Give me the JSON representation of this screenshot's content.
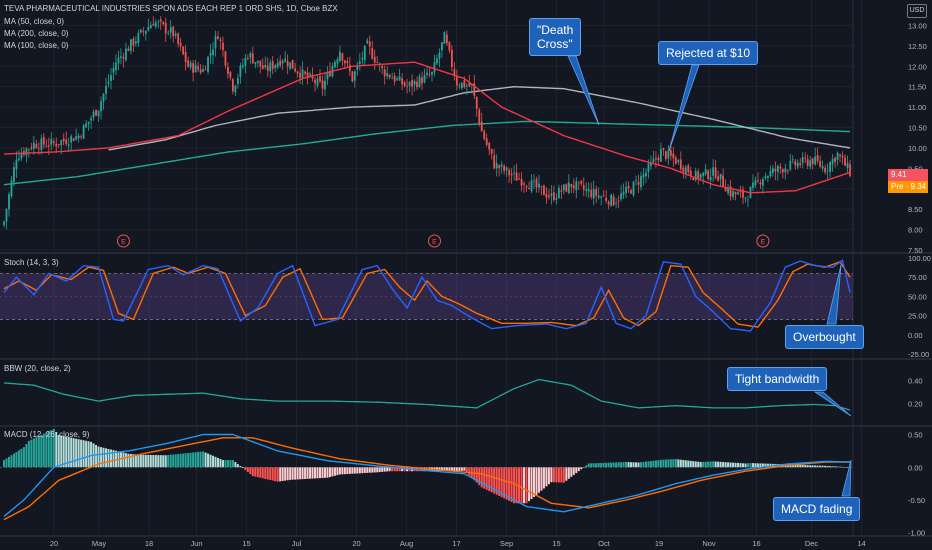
{
  "header": {
    "symbol_line": "TEVA PHARMACEUTICAL INDUSTRIES SPON ADS EACH REP 1 ORD SHS, 1D, Cboe BZX",
    "ma1": "MA (50, close, 0)",
    "ma2": "MA (200, close, 0)",
    "ma3": "MA (100, close, 0)",
    "currency": "USD"
  },
  "price_tags": {
    "last": "9.41",
    "pre": "Pre · 9.34",
    "last_color": "#f7525f",
    "pre_color": "#ff9800"
  },
  "annotations": {
    "death_cross": "\"Death\nCross\"",
    "rejected": "Rejected at $10",
    "overbought": "Overbought",
    "tight_bandwidth": "Tight bandwidth",
    "macd_fading": "MACD fading"
  },
  "indicator_titles": {
    "stoch": "Stoch (14, 3, 3)",
    "bbw": "BBW (20, close, 2)",
    "macd": "MACD (12, 26, close, 9)"
  },
  "earnings_marker": "E",
  "colors": {
    "bg": "#131722",
    "up": "#26a69a",
    "down": "#ef5350",
    "ma50": "#f23645",
    "ma100": "#b2b5be",
    "ma200": "#22ab94",
    "stoch_k": "#2962ff",
    "stoch_d": "#ff6d00",
    "stoch_band": "#7e57c2",
    "bbw": "#26a69a",
    "macd": "#2196f3",
    "signal": "#ff6d00"
  },
  "chart_data": [
    {
      "type": "candlestick",
      "title": "TEVA PHARMACEUTICAL INDUSTRIES SPON ADS EACH REP 1 ORD SHS, 1D, Cboe BZX",
      "ylim": [
        7.5,
        13.5
      ],
      "y_ticks": [
        "13.00",
        "12.50",
        "12.00",
        "11.50",
        "11.00",
        "10.50",
        "10.00",
        "9.50",
        "9.00",
        "8.50",
        "8.00",
        "7.50"
      ],
      "x_ticks": [
        "20",
        "May",
        "18",
        "Jun",
        "15",
        "Jul",
        "20",
        "Aug",
        "17",
        "Sep",
        "15",
        "Oct",
        "19",
        "Nov",
        "16",
        "Dec",
        "14"
      ],
      "close_anchors": [
        [
          0,
          8.2
        ],
        [
          5,
          9.8
        ],
        [
          12,
          10.1
        ],
        [
          20,
          10.1
        ],
        [
          30,
          10.3
        ],
        [
          38,
          11.0
        ],
        [
          45,
          12.1
        ],
        [
          52,
          12.6
        ],
        [
          60,
          13.1
        ],
        [
          68,
          12.8
        ],
        [
          74,
          12.0
        ],
        [
          80,
          11.9
        ],
        [
          86,
          12.8
        ],
        [
          92,
          11.5
        ],
        [
          98,
          12.3
        ],
        [
          105,
          11.9
        ],
        [
          112,
          12.2
        ],
        [
          120,
          11.8
        ],
        [
          128,
          11.5
        ],
        [
          135,
          12.4
        ],
        [
          140,
          11.7
        ],
        [
          146,
          12.5
        ],
        [
          152,
          11.9
        ],
        [
          162,
          11.5
        ],
        [
          172,
          11.8
        ],
        [
          177,
          12.7
        ],
        [
          182,
          11.6
        ],
        [
          188,
          11.5
        ],
        [
          192,
          10.4
        ],
        [
          197,
          9.6
        ],
        [
          205,
          9.3
        ],
        [
          212,
          9.1
        ],
        [
          220,
          8.8
        ],
        [
          228,
          9.1
        ],
        [
          236,
          8.9
        ],
        [
          245,
          8.7
        ],
        [
          252,
          9.0
        ],
        [
          258,
          9.4
        ],
        [
          264,
          9.9
        ],
        [
          270,
          9.7
        ],
        [
          278,
          9.3
        ],
        [
          286,
          9.4
        ],
        [
          292,
          8.9
        ],
        [
          298,
          8.8
        ],
        [
          305,
          9.3
        ],
        [
          312,
          9.5
        ],
        [
          318,
          9.6
        ],
        [
          325,
          9.7
        ],
        [
          330,
          9.5
        ],
        [
          335,
          9.85
        ],
        [
          340,
          9.41
        ]
      ],
      "ma50_anchors": [
        [
          0,
          9.85
        ],
        [
          20,
          9.9
        ],
        [
          42,
          10.0
        ],
        [
          70,
          10.3
        ],
        [
          90,
          10.9
        ],
        [
          120,
          11.7
        ],
        [
          140,
          12.0
        ],
        [
          165,
          12.1
        ],
        [
          185,
          11.7
        ],
        [
          200,
          11.0
        ],
        [
          225,
          10.3
        ],
        [
          250,
          9.8
        ],
        [
          268,
          9.5
        ],
        [
          285,
          9.1
        ],
        [
          300,
          8.9
        ],
        [
          318,
          8.95
        ],
        [
          340,
          9.4
        ]
      ],
      "ma100_anchors": [
        [
          42,
          9.95
        ],
        [
          65,
          10.2
        ],
        [
          85,
          10.55
        ],
        [
          110,
          10.85
        ],
        [
          140,
          11.0
        ],
        [
          165,
          11.05
        ],
        [
          185,
          11.35
        ],
        [
          205,
          11.5
        ],
        [
          225,
          11.45
        ],
        [
          255,
          11.1
        ],
        [
          285,
          10.7
        ],
        [
          315,
          10.25
        ],
        [
          340,
          10.0
        ]
      ],
      "ma200_anchors": [
        [
          0,
          9.1
        ],
        [
          30,
          9.3
        ],
        [
          60,
          9.6
        ],
        [
          90,
          9.9
        ],
        [
          120,
          10.1
        ],
        [
          150,
          10.35
        ],
        [
          180,
          10.55
        ],
        [
          210,
          10.65
        ],
        [
          240,
          10.6
        ],
        [
          270,
          10.55
        ],
        [
          300,
          10.5
        ],
        [
          340,
          10.4
        ]
      ],
      "earnings_days": [
        48,
        173,
        305
      ],
      "last": 9.41,
      "pre": 9.34
    },
    {
      "type": "line",
      "title": "Stoch (14, 3, 3)",
      "ylim": [
        -25,
        100
      ],
      "y_ticks": [
        "100.00",
        "75.00",
        "50.00",
        "25.00",
        "0.00",
        "-25.00"
      ],
      "band": [
        20,
        80
      ],
      "k_anchors": [
        [
          0,
          55
        ],
        [
          5,
          75
        ],
        [
          12,
          52
        ],
        [
          18,
          80
        ],
        [
          25,
          70
        ],
        [
          32,
          90
        ],
        [
          38,
          88
        ],
        [
          44,
          20
        ],
        [
          48,
          18
        ],
        [
          58,
          85
        ],
        [
          66,
          90
        ],
        [
          72,
          78
        ],
        [
          80,
          90
        ],
        [
          86,
          86
        ],
        [
          95,
          18
        ],
        [
          102,
          35
        ],
        [
          110,
          80
        ],
        [
          116,
          90
        ],
        [
          125,
          12
        ],
        [
          134,
          20
        ],
        [
          144,
          85
        ],
        [
          150,
          90
        ],
        [
          156,
          60
        ],
        [
          162,
          35
        ],
        [
          168,
          75
        ],
        [
          174,
          45
        ],
        [
          180,
          38
        ],
        [
          188,
          22
        ],
        [
          196,
          8
        ],
        [
          206,
          12
        ],
        [
          218,
          14
        ],
        [
          226,
          8
        ],
        [
          234,
          15
        ],
        [
          240,
          62
        ],
        [
          246,
          15
        ],
        [
          252,
          8
        ],
        [
          258,
          25
        ],
        [
          265,
          95
        ],
        [
          272,
          92
        ],
        [
          278,
          50
        ],
        [
          285,
          30
        ],
        [
          292,
          8
        ],
        [
          300,
          5
        ],
        [
          308,
          42
        ],
        [
          314,
          88
        ],
        [
          320,
          96
        ],
        [
          326,
          90
        ],
        [
          333,
          88
        ],
        [
          337,
          97
        ],
        [
          340,
          55
        ]
      ],
      "d_anchors": [
        [
          0,
          60
        ],
        [
          6,
          70
        ],
        [
          13,
          58
        ],
        [
          19,
          78
        ],
        [
          27,
          72
        ],
        [
          34,
          88
        ],
        [
          40,
          84
        ],
        [
          46,
          28
        ],
        [
          52,
          20
        ],
        [
          60,
          80
        ],
        [
          68,
          88
        ],
        [
          74,
          80
        ],
        [
          82,
          88
        ],
        [
          89,
          80
        ],
        [
          97,
          25
        ],
        [
          105,
          38
        ],
        [
          112,
          75
        ],
        [
          119,
          86
        ],
        [
          128,
          20
        ],
        [
          136,
          22
        ],
        [
          146,
          80
        ],
        [
          153,
          85
        ],
        [
          159,
          62
        ],
        [
          165,
          45
        ],
        [
          170,
          70
        ],
        [
          176,
          50
        ],
        [
          183,
          40
        ],
        [
          190,
          28
        ],
        [
          200,
          15
        ],
        [
          210,
          15
        ],
        [
          220,
          16
        ],
        [
          230,
          12
        ],
        [
          237,
          22
        ],
        [
          243,
          58
        ],
        [
          249,
          22
        ],
        [
          255,
          12
        ],
        [
          262,
          30
        ],
        [
          268,
          90
        ],
        [
          275,
          88
        ],
        [
          281,
          55
        ],
        [
          288,
          35
        ],
        [
          295,
          14
        ],
        [
          303,
          10
        ],
        [
          311,
          45
        ],
        [
          317,
          82
        ],
        [
          323,
          92
        ],
        [
          330,
          88
        ],
        [
          336,
          95
        ],
        [
          340,
          75
        ]
      ],
      "annotation": "Overbought"
    },
    {
      "type": "line",
      "title": "BBW (20, close, 2)",
      "y_ticks": [
        "0.40",
        "0.20"
      ],
      "values_anchors": [
        [
          0,
          0.38
        ],
        [
          12,
          0.36
        ],
        [
          24,
          0.28
        ],
        [
          38,
          0.22
        ],
        [
          52,
          0.27
        ],
        [
          66,
          0.28
        ],
        [
          80,
          0.29
        ],
        [
          95,
          0.24
        ],
        [
          110,
          0.22
        ],
        [
          130,
          0.22
        ],
        [
          150,
          0.21
        ],
        [
          170,
          0.19
        ],
        [
          190,
          0.16
        ],
        [
          205,
          0.33
        ],
        [
          215,
          0.41
        ],
        [
          228,
          0.36
        ],
        [
          240,
          0.22
        ],
        [
          255,
          0.16
        ],
        [
          270,
          0.18
        ],
        [
          285,
          0.16
        ],
        [
          298,
          0.16
        ],
        [
          312,
          0.18
        ],
        [
          326,
          0.19
        ],
        [
          334,
          0.18
        ],
        [
          340,
          0.14
        ]
      ],
      "annotation": "Tight bandwidth"
    },
    {
      "type": "line",
      "title": "MACD (12, 26, close, 9)",
      "ylim": [
        -1.05,
        0.6
      ],
      "y_ticks": [
        "0.50",
        "0.00",
        "-0.50",
        "-1.00"
      ],
      "macd_anchors": [
        [
          0,
          -0.75
        ],
        [
          8,
          -0.5
        ],
        [
          20,
          0.0
        ],
        [
          35,
          0.18
        ],
        [
          50,
          0.25
        ],
        [
          65,
          0.36
        ],
        [
          80,
          0.5
        ],
        [
          92,
          0.5
        ],
        [
          110,
          0.25
        ],
        [
          130,
          0.1
        ],
        [
          150,
          0.02
        ],
        [
          170,
          -0.05
        ],
        [
          185,
          -0.1
        ],
        [
          195,
          -0.3
        ],
        [
          210,
          -0.6
        ],
        [
          225,
          -0.68
        ],
        [
          240,
          -0.55
        ],
        [
          255,
          -0.42
        ],
        [
          270,
          -0.25
        ],
        [
          285,
          -0.12
        ],
        [
          300,
          -0.02
        ],
        [
          315,
          0.05
        ],
        [
          330,
          0.09
        ],
        [
          340,
          0.08
        ]
      ],
      "signal_anchors": [
        [
          0,
          -0.8
        ],
        [
          10,
          -0.6
        ],
        [
          22,
          -0.2
        ],
        [
          38,
          0.05
        ],
        [
          55,
          0.2
        ],
        [
          72,
          0.33
        ],
        [
          88,
          0.45
        ],
        [
          100,
          0.45
        ],
        [
          115,
          0.3
        ],
        [
          135,
          0.13
        ],
        [
          155,
          0.03
        ],
        [
          175,
          -0.04
        ],
        [
          192,
          -0.1
        ],
        [
          205,
          -0.25
        ],
        [
          220,
          -0.55
        ],
        [
          235,
          -0.62
        ],
        [
          250,
          -0.5
        ],
        [
          265,
          -0.36
        ],
        [
          280,
          -0.2
        ],
        [
          298,
          -0.06
        ],
        [
          315,
          0.03
        ],
        [
          330,
          0.08
        ],
        [
          340,
          0.08
        ]
      ],
      "annotation": "MACD fading"
    }
  ]
}
